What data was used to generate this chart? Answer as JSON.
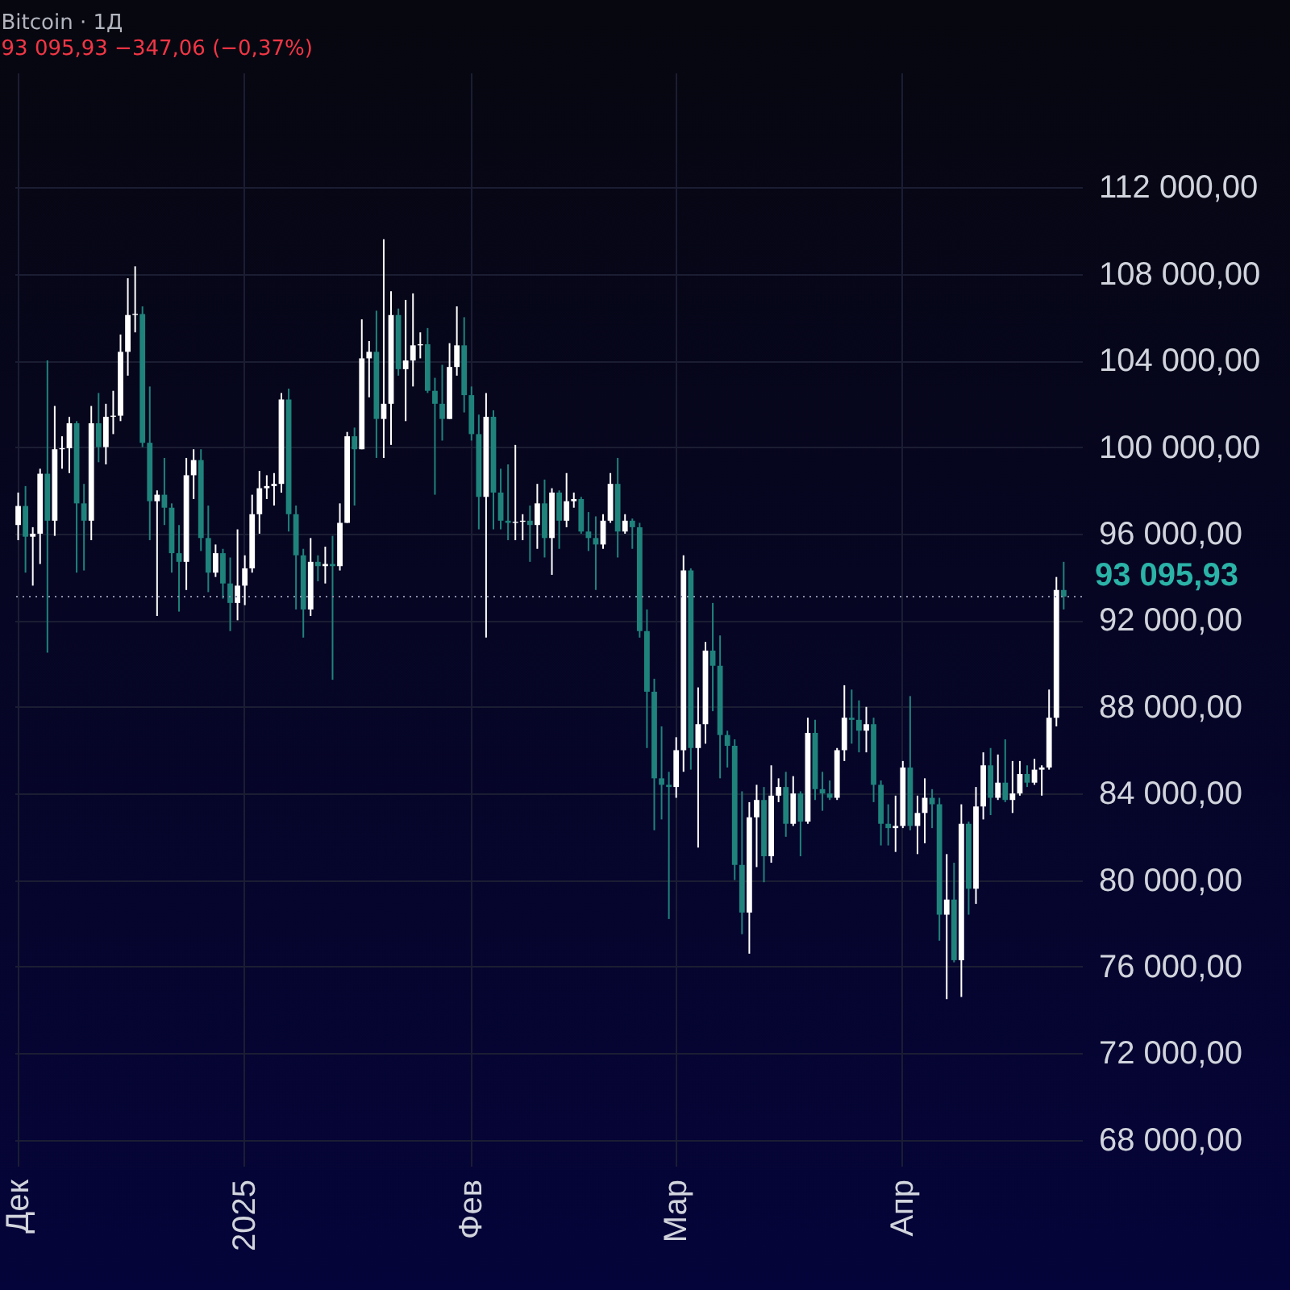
{
  "chart_data": {
    "type": "candlestick",
    "title": "Bitcoin · 1Д",
    "subtitle": "93 095,93  −347,06 (−0,37%)",
    "categories": [
      "Дек",
      null,
      null,
      null,
      null,
      null,
      null,
      null,
      null,
      null,
      null,
      null,
      null,
      null,
      null,
      null,
      null,
      null,
      null,
      null,
      null,
      null,
      null,
      null,
      null,
      null,
      null,
      null,
      null,
      null,
      null,
      "2025",
      null,
      null,
      null,
      null,
      null,
      null,
      null,
      null,
      null,
      null,
      null,
      null,
      null,
      null,
      null,
      null,
      null,
      null,
      null,
      null,
      null,
      null,
      null,
      null,
      null,
      null,
      null,
      null,
      null,
      null,
      "Фев",
      null,
      null,
      null,
      null,
      null,
      null,
      null,
      null,
      null,
      null,
      null,
      null,
      null,
      null,
      null,
      null,
      null,
      null,
      null,
      null,
      null,
      null,
      null,
      null,
      null,
      null,
      null,
      "Мар",
      null,
      null,
      null,
      null,
      null,
      null,
      null,
      null,
      null,
      null,
      null,
      null,
      null,
      null,
      null,
      null,
      null,
      null,
      null,
      null,
      null,
      null,
      null,
      null,
      null,
      null,
      null,
      null,
      null,
      null,
      "Апр",
      null,
      null,
      null,
      null,
      null,
      null,
      null,
      null,
      null,
      null,
      null,
      null,
      null,
      null,
      null,
      null,
      null,
      null,
      null,
      null,
      null,
      null
    ],
    "ohlc": [
      [
        96400,
        97900,
        95700,
        97280
      ],
      [
        97280,
        98200,
        94200,
        95860
      ],
      [
        95860,
        96300,
        93600,
        96000
      ],
      [
        96000,
        99000,
        94600,
        98770
      ],
      [
        98770,
        104000,
        90500,
        96600
      ],
      [
        96600,
        101900,
        95900,
        99900
      ],
      [
        99900,
        100500,
        99000,
        99950
      ],
      [
        99950,
        101400,
        98800,
        101100
      ],
      [
        101100,
        101200,
        94200,
        97400
      ],
      [
        97400,
        98300,
        94300,
        96600
      ],
      [
        96600,
        101900,
        95700,
        101100
      ],
      [
        101100,
        102500,
        99300,
        100000
      ],
      [
        100000,
        102000,
        99200,
        101400
      ],
      [
        101400,
        102600,
        100600,
        101450
      ],
      [
        101450,
        105200,
        101200,
        104400
      ],
      [
        104400,
        107800,
        103300,
        106100
      ],
      [
        106100,
        108350,
        105300,
        106150
      ],
      [
        106150,
        106500,
        100000,
        100200
      ],
      [
        100200,
        102800,
        95700,
        97500
      ],
      [
        97500,
        98000,
        92200,
        97800
      ],
      [
        97800,
        99500,
        96400,
        97200
      ],
      [
        97200,
        97400,
        94200,
        95100
      ],
      [
        95100,
        96400,
        92400,
        94700
      ],
      [
        94700,
        99500,
        93400,
        98700
      ],
      [
        98700,
        99900,
        97600,
        99400
      ],
      [
        99400,
        99900,
        95200,
        95800
      ],
      [
        95800,
        97300,
        93300,
        94200
      ],
      [
        94200,
        95500,
        94000,
        95100
      ],
      [
        95100,
        95300,
        93000,
        93700
      ],
      [
        93700,
        94900,
        91500,
        92800
      ],
      [
        92800,
        96200,
        92000,
        93600
      ],
      [
        93600,
        95000,
        92700,
        94400
      ],
      [
        94400,
        97800,
        94200,
        96900
      ],
      [
        96900,
        98900,
        96000,
        98100
      ],
      [
        98100,
        98700,
        97600,
        98200
      ],
      [
        98200,
        98800,
        97300,
        98300
      ],
      [
        98300,
        102500,
        97900,
        102200
      ],
      [
        102200,
        102700,
        96100,
        96900
      ],
      [
        96900,
        97300,
        92500,
        95000
      ],
      [
        95000,
        95300,
        91200,
        92500
      ],
      [
        92500,
        95800,
        92200,
        94700
      ],
      [
        94700,
        95000,
        93800,
        94500
      ],
      [
        94500,
        95400,
        93700,
        94600
      ],
      [
        94600,
        95900,
        89250,
        94500
      ],
      [
        94500,
        97400,
        94300,
        96500
      ],
      [
        96500,
        100700,
        96500,
        100500
      ],
      [
        100500,
        100900,
        97300,
        99900
      ],
      [
        99900,
        105900,
        99900,
        104100
      ],
      [
        104100,
        104900,
        102300,
        104400
      ],
      [
        104400,
        106300,
        99500,
        101300
      ],
      [
        101300,
        109600,
        99500,
        102000
      ],
      [
        102000,
        107200,
        100100,
        106100
      ],
      [
        106100,
        106400,
        103300,
        103600
      ],
      [
        103600,
        106800,
        101200,
        104000
      ],
      [
        104000,
        107100,
        102800,
        104700
      ],
      [
        104700,
        105300,
        104100,
        104750
      ],
      [
        104750,
        105500,
        102500,
        102600
      ],
      [
        102600,
        103200,
        97800,
        102000
      ],
      [
        102000,
        103800,
        100300,
        101300
      ],
      [
        101300,
        104800,
        101300,
        103700
      ],
      [
        103700,
        106500,
        103300,
        104700
      ],
      [
        104700,
        106000,
        101600,
        102400
      ],
      [
        102400,
        102800,
        100300,
        100600
      ],
      [
        100600,
        101500,
        96200,
        97700
      ],
      [
        97700,
        102500,
        91200,
        101400
      ],
      [
        101400,
        101700,
        96200,
        97900
      ],
      [
        97900,
        99000,
        96200,
        96600
      ],
      [
        96600,
        99200,
        95700,
        96500
      ],
      [
        96500,
        100100,
        95700,
        96550
      ],
      [
        96550,
        96900,
        95700,
        96600
      ],
      [
        96600,
        97300,
        94700,
        96400
      ],
      [
        96400,
        98300,
        95300,
        97400
      ],
      [
        97400,
        98500,
        94900,
        95800
      ],
      [
        95800,
        98100,
        94100,
        97900
      ],
      [
        97900,
        98000,
        95300,
        96600
      ],
      [
        96600,
        98800,
        96300,
        97500
      ],
      [
        97500,
        97900,
        97200,
        97600
      ],
      [
        97600,
        97700,
        96000,
        96100
      ],
      [
        96100,
        97000,
        95200,
        95800
      ],
      [
        95800,
        96800,
        93400,
        95500
      ],
      [
        95500,
        96900,
        95300,
        96600
      ],
      [
        96600,
        98800,
        96500,
        98300
      ],
      [
        98300,
        99500,
        94900,
        96100
      ],
      [
        96100,
        96900,
        96000,
        96600
      ],
      [
        96600,
        96700,
        95300,
        96300
      ],
      [
        96300,
        96500,
        91200,
        91500
      ],
      [
        91500,
        92500,
        86100,
        88700
      ],
      [
        88700,
        89300,
        82300,
        84700
      ],
      [
        84700,
        87100,
        82800,
        84400
      ],
      [
        84400,
        85000,
        78200,
        84300
      ],
      [
        84300,
        86600,
        83800,
        86000
      ],
      [
        86000,
        95000,
        85000,
        94300
      ],
      [
        94300,
        94400,
        85100,
        86100
      ],
      [
        86100,
        88900,
        81500,
        87200
      ],
      [
        87200,
        91000,
        86300,
        90600
      ],
      [
        90600,
        92800,
        87800,
        89900
      ],
      [
        89900,
        91300,
        84700,
        86700
      ],
      [
        86700,
        86900,
        85200,
        86200
      ],
      [
        86200,
        86500,
        80000,
        80700
      ],
      [
        80700,
        84100,
        77500,
        78500
      ],
      [
        78500,
        83600,
        76600,
        82900
      ],
      [
        82900,
        84400,
        80600,
        83700
      ],
      [
        83700,
        84300,
        79900,
        81100
      ],
      [
        81100,
        85300,
        80800,
        83900
      ],
      [
        83900,
        84700,
        83600,
        84300
      ],
      [
        84300,
        85000,
        82000,
        82600
      ],
      [
        82600,
        84800,
        82500,
        84000
      ],
      [
        84000,
        84100,
        81100,
        82700
      ],
      [
        82700,
        87500,
        82600,
        86800
      ],
      [
        86800,
        87400,
        83700,
        84200
      ],
      [
        84200,
        85000,
        83200,
        84000
      ],
      [
        84000,
        84600,
        83700,
        83800
      ],
      [
        83800,
        86100,
        83700,
        86000
      ],
      [
        86000,
        89000,
        85500,
        87500
      ],
      [
        87500,
        88800,
        86300,
        87400
      ],
      [
        87400,
        88300,
        85900,
        86900
      ],
      [
        86900,
        88000,
        85900,
        87200
      ],
      [
        87200,
        87500,
        83600,
        84400
      ],
      [
        84400,
        84600,
        81600,
        82600
      ],
      [
        82600,
        83500,
        81600,
        82400
      ],
      [
        82400,
        83900,
        81300,
        82500
      ],
      [
        82500,
        85500,
        82400,
        85200
      ],
      [
        85200,
        88500,
        82300,
        82500
      ],
      [
        82500,
        83900,
        81200,
        83100
      ],
      [
        83100,
        84700,
        81700,
        83800
      ],
      [
        83800,
        84200,
        82400,
        83500
      ],
      [
        83500,
        83800,
        77200,
        78400
      ],
      [
        78400,
        81200,
        74500,
        79100
      ],
      [
        79100,
        80800,
        76200,
        76300
      ],
      [
        76300,
        83500,
        74600,
        82600
      ],
      [
        82600,
        82700,
        78400,
        79600
      ],
      [
        79600,
        84300,
        78900,
        83400
      ],
      [
        83400,
        85900,
        82800,
        85300
      ],
      [
        85300,
        86100,
        83000,
        83800
      ],
      [
        83800,
        85800,
        83700,
        84500
      ],
      [
        84500,
        86500,
        83600,
        83700
      ],
      [
        83700,
        85500,
        83100,
        84000
      ],
      [
        84000,
        85500,
        83900,
        84900
      ],
      [
        84900,
        85300,
        84300,
        84500
      ],
      [
        84500,
        85600,
        84400,
        85100
      ],
      [
        85100,
        85300,
        83900,
        85200
      ],
      [
        85200,
        88800,
        85100,
        87500
      ],
      [
        87500,
        94000,
        87100,
        93400
      ],
      [
        93400,
        94700,
        92500,
        93096
      ]
    ],
    "colors": [
      "#ffffff",
      "#1f837c",
      "#ffffff",
      "#ffffff",
      "#1f837c",
      "#ffffff",
      "#ffffff",
      "#ffffff",
      "#1f837c",
      "#1f837c",
      "#ffffff",
      "#1f837c",
      "#ffffff",
      "#ffffff",
      "#ffffff",
      "#ffffff",
      "#ffffff",
      "#1f837c",
      "#1f837c",
      "#ffffff",
      "#1f837c",
      "#1f837c",
      "#1f837c",
      "#ffffff",
      "#ffffff",
      "#1f837c",
      "#1f837c",
      "#ffffff",
      "#1f837c",
      "#1f837c",
      "#ffffff",
      "#ffffff",
      "#ffffff",
      "#ffffff",
      "#ffffff",
      "#ffffff",
      "#ffffff",
      "#1f837c",
      "#1f837c",
      "#1f837c",
      "#ffffff",
      "#1f837c",
      "#ffffff",
      "#1f837c",
      "#ffffff",
      "#ffffff",
      "#1f837c",
      "#ffffff",
      "#ffffff",
      "#1f837c",
      "#ffffff",
      "#ffffff",
      "#1f837c",
      "#ffffff",
      "#ffffff",
      "#ffffff",
      "#1f837c",
      "#1f837c",
      "#1f837c",
      "#ffffff",
      "#ffffff",
      "#1f837c",
      "#1f837c",
      "#1f837c",
      "#ffffff",
      "#1f837c",
      "#1f837c",
      "#1f837c",
      "#ffffff",
      "#ffffff",
      "#1f837c",
      "#ffffff",
      "#1f837c",
      "#ffffff",
      "#1f837c",
      "#ffffff",
      "#ffffff",
      "#1f837c",
      "#1f837c",
      "#1f837c",
      "#ffffff",
      "#ffffff",
      "#1f837c",
      "#ffffff",
      "#1f837c",
      "#1f837c",
      "#1f837c",
      "#1f837c",
      "#1f837c",
      "#1f837c",
      "#ffffff",
      "#ffffff",
      "#1f837c",
      "#ffffff",
      "#ffffff",
      "#1f837c",
      "#1f837c",
      "#1f837c",
      "#1f837c",
      "#1f837c",
      "#ffffff",
      "#ffffff",
      "#1f837c",
      "#ffffff",
      "#ffffff",
      "#1f837c",
      "#ffffff",
      "#1f837c",
      "#ffffff",
      "#1f837c",
      "#1f837c",
      "#1f837c",
      "#ffffff",
      "#ffffff",
      "#1f837c",
      "#1f837c",
      "#ffffff",
      "#1f837c",
      "#1f837c",
      "#1f837c",
      "#ffffff",
      "#ffffff",
      "#1f837c",
      "#ffffff",
      "#ffffff",
      "#1f837c",
      "#1f837c",
      "#ffffff",
      "#1f837c",
      "#ffffff",
      "#1f837c",
      "#ffffff",
      "#ffffff",
      "#1f837c",
      "#ffffff",
      "#1f837c",
      "#ffffff",
      "#ffffff",
      "#1f837c",
      "#ffffff",
      "#ffffff",
      "#ffffff",
      "#ffffff",
      "#1f837c"
    ],
    "ylim": [
      66800,
      117300
    ],
    "yticks": [
      {
        "value": 68000,
        "label": "68 000,00"
      },
      {
        "value": 72000,
        "label": "72 000,00"
      },
      {
        "value": 76000,
        "label": "76 000,00"
      },
      {
        "value": 80000,
        "label": "80 000,00"
      },
      {
        "value": 84000,
        "label": "84 000,00"
      },
      {
        "value": 88000,
        "label": "88 000,00"
      },
      {
        "value": 92000,
        "label": "92 000,00"
      },
      {
        "value": 96000,
        "label": "96 000,00"
      },
      {
        "value": 100000,
        "label": "100 000,00"
      },
      {
        "value": 104000,
        "label": "104 000,00"
      },
      {
        "value": 108000,
        "label": "108 000,00"
      },
      {
        "value": 112000,
        "label": "112 000,00"
      }
    ],
    "ref_lines": [
      {
        "axis": "y",
        "value": 93095.93,
        "label": "93 095,93",
        "color": "#8a8fa8",
        "line_style": "dotted"
      }
    ],
    "grid": true
  }
}
